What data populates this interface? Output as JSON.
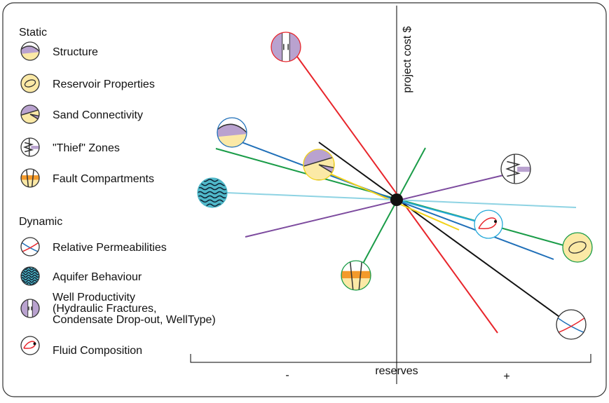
{
  "legend": {
    "static": {
      "heading": "Static",
      "items": [
        [
          "Structure"
        ],
        [
          "Reservoir Properties"
        ],
        [
          "Sand Connectivity"
        ],
        [
          "\"Thief\" Zones"
        ],
        [
          "Fault Compartments"
        ]
      ]
    },
    "dynamic": {
      "heading": "Dynamic",
      "items": [
        [
          "Relative Permeabilities"
        ],
        [
          "Aquifer Behaviour"
        ],
        [
          "Well Productivity",
          "(Hydraulic Fractures,",
          "Condensate Drop-out, WellType)"
        ],
        [
          "Fluid Composition"
        ]
      ]
    }
  },
  "axes": {
    "y_label": "project cost $",
    "x_label": "reserves",
    "x_minus": "-",
    "x_plus": "+"
  }
}
